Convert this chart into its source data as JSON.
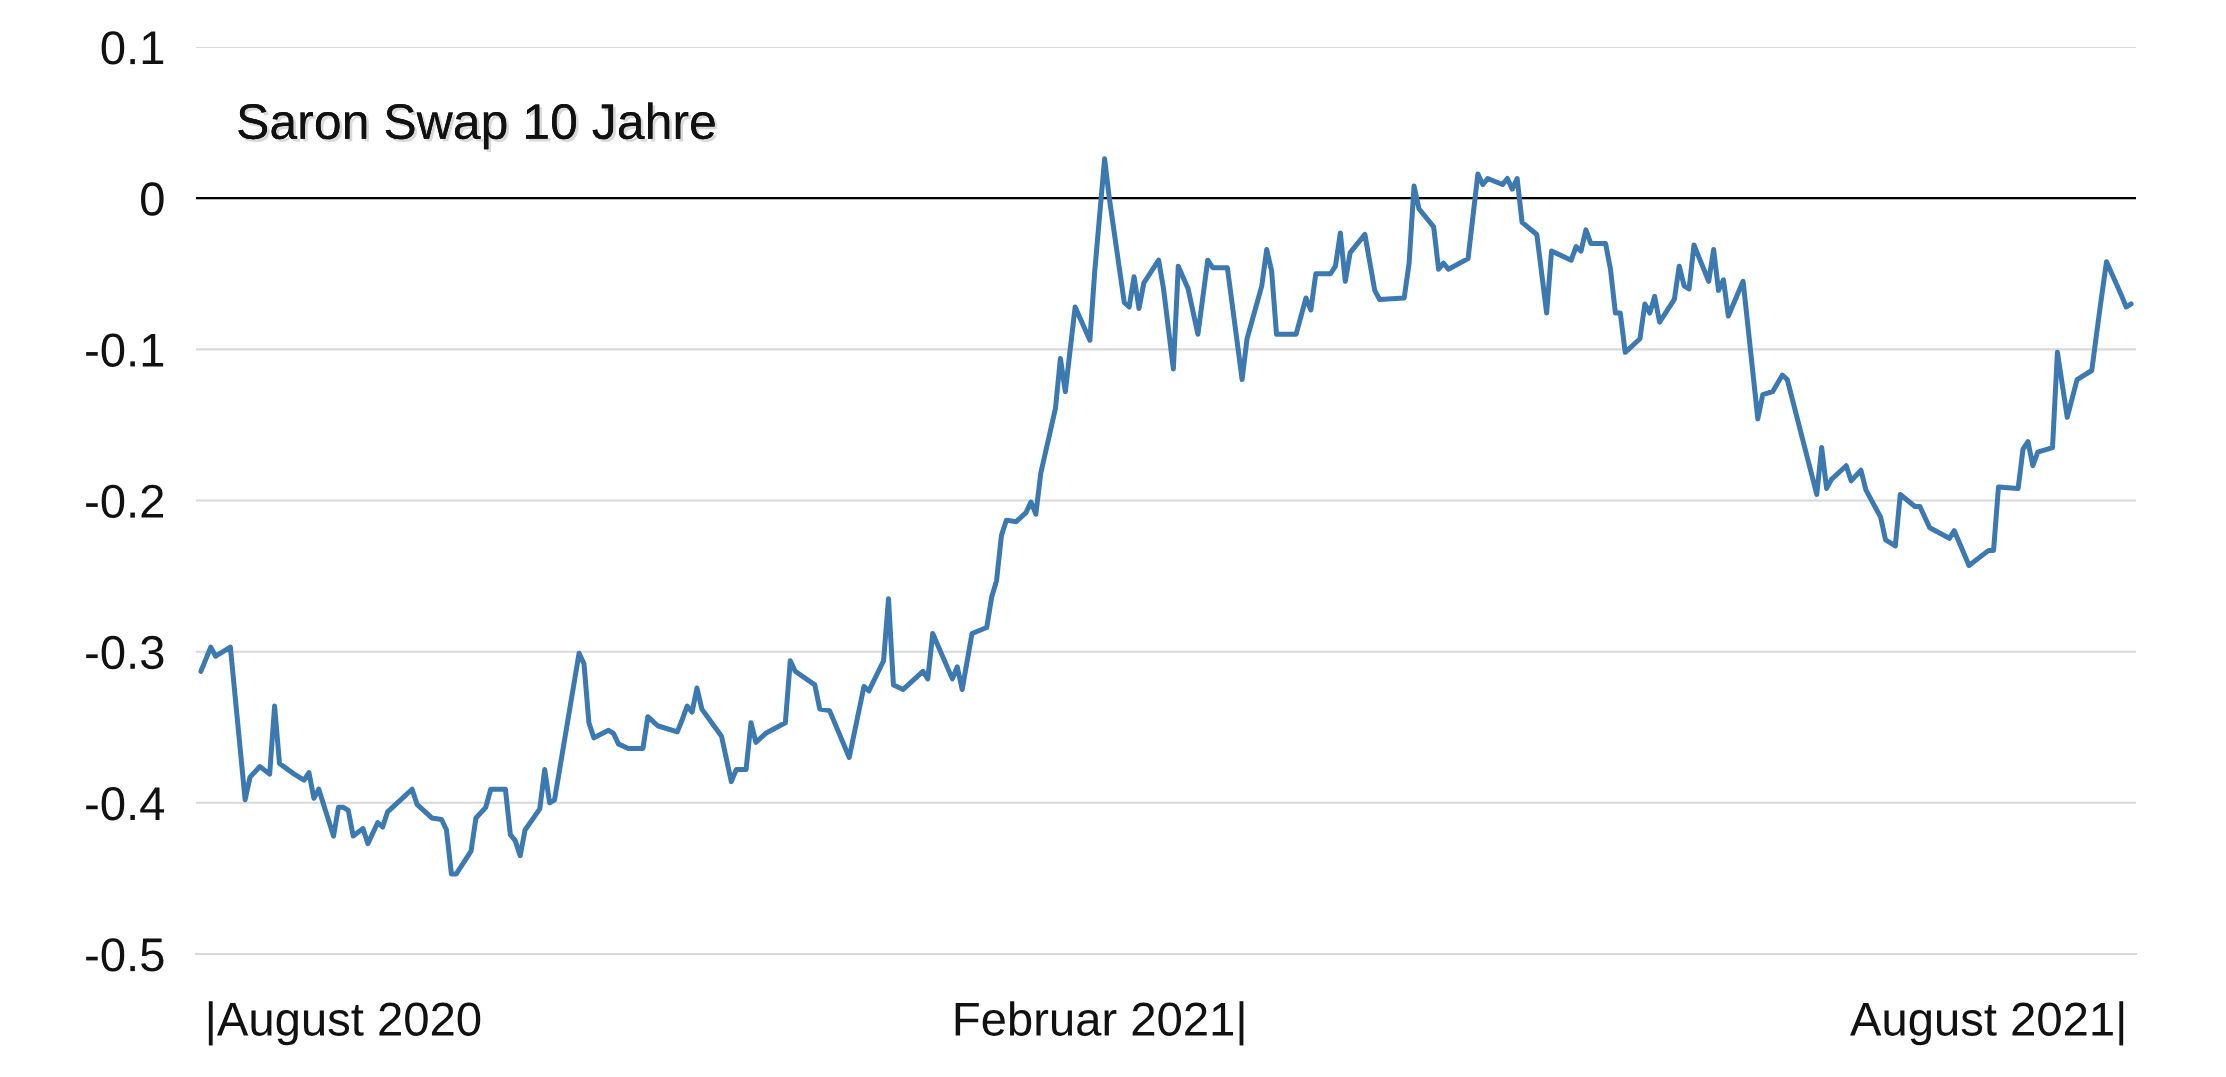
{
  "chart_data": {
    "type": "line",
    "title": "Saron Swap 10 Jahre",
    "x": [
      "2020-08-02",
      "2020-08-04",
      "2020-08-05",
      "2020-08-08",
      "2020-08-11",
      "2020-08-12",
      "2020-08-14",
      "2020-08-16",
      "2020-08-17",
      "2020-08-18",
      "2020-08-21",
      "2020-08-23",
      "2020-08-24",
      "2020-08-25",
      "2020-08-26",
      "2020-08-29",
      "2020-08-30",
      "2020-08-31",
      "2020-09-01",
      "2020-09-02",
      "2020-09-04",
      "2020-09-05",
      "2020-09-07",
      "2020-09-08",
      "2020-09-09",
      "2020-09-12",
      "2020-09-14",
      "2020-09-15",
      "2020-09-18",
      "2020-09-20",
      "2020-09-21",
      "2020-09-22",
      "2020-09-23",
      "2020-09-26",
      "2020-09-27",
      "2020-09-29",
      "2020-09-30",
      "2020-10-03",
      "2020-10-04",
      "2020-10-05",
      "2020-10-06",
      "2020-10-07",
      "2020-10-10",
      "2020-10-11",
      "2020-10-12",
      "2020-10-13",
      "2020-10-18",
      "2020-10-19",
      "2020-10-20",
      "2020-10-21",
      "2020-10-24",
      "2020-10-25",
      "2020-10-26",
      "2020-10-28",
      "2020-10-31",
      "2020-11-01",
      "2020-11-03",
      "2020-11-07",
      "2020-11-08",
      "2020-11-09",
      "2020-11-10",
      "2020-11-11",
      "2020-11-12",
      "2020-11-16",
      "2020-11-18",
      "2020-11-19",
      "2020-11-21",
      "2020-11-22",
      "2020-11-23",
      "2020-11-25",
      "2020-11-29",
      "2020-11-30",
      "2020-12-01",
      "2020-12-05",
      "2020-12-06",
      "2020-12-08",
      "2020-12-12",
      "2020-12-15",
      "2020-12-16",
      "2020-12-19",
      "2020-12-20",
      "2020-12-21",
      "2020-12-23",
      "2020-12-27",
      "2020-12-28",
      "2020-12-29",
      "2021-01-02",
      "2021-01-03",
      "2021-01-04",
      "2021-01-06",
      "2021-01-09",
      "2021-01-10",
      "2021-01-11",
      "2021-01-12",
      "2021-01-13",
      "2021-01-15",
      "2021-01-17",
      "2021-01-18",
      "2021-01-19",
      "2021-01-20",
      "2021-01-23",
      "2021-01-24",
      "2021-01-25",
      "2021-01-27",
      "2021-01-30",
      "2021-01-31",
      "2021-02-02",
      "2021-02-03",
      "2021-02-06",
      "2021-02-07",
      "2021-02-08",
      "2021-02-09",
      "2021-02-10",
      "2021-02-13",
      "2021-02-14",
      "2021-02-16",
      "2021-02-17",
      "2021-02-19",
      "2021-02-21",
      "2021-02-23",
      "2021-02-24",
      "2021-02-27",
      "2021-03-02",
      "2021-03-03",
      "2021-03-06",
      "2021-03-07",
      "2021-03-08",
      "2021-03-09",
      "2021-03-13",
      "2021-03-15",
      "2021-03-16",
      "2021-03-17",
      "2021-03-20",
      "2021-03-21",
      "2021-03-22",
      "2021-03-23",
      "2021-03-24",
      "2021-03-27",
      "2021-03-29",
      "2021-03-30",
      "2021-04-04",
      "2021-04-05",
      "2021-04-06",
      "2021-04-07",
      "2021-04-10",
      "2021-04-11",
      "2021-04-12",
      "2021-04-13",
      "2021-04-17",
      "2021-04-19",
      "2021-04-20",
      "2021-04-21",
      "2021-04-24",
      "2021-04-25",
      "2021-04-26",
      "2021-04-27",
      "2021-04-28",
      "2021-05-01",
      "2021-05-03",
      "2021-05-04",
      "2021-05-08",
      "2021-05-09",
      "2021-05-10",
      "2021-05-11",
      "2021-05-12",
      "2021-05-15",
      "2021-05-16",
      "2021-05-17",
      "2021-05-18",
      "2021-05-19",
      "2021-05-22",
      "2021-05-23",
      "2021-05-24",
      "2021-05-25",
      "2021-05-26",
      "2021-05-29",
      "2021-05-30",
      "2021-05-31",
      "2021-06-01",
      "2021-06-02",
      "2021-06-05",
      "2021-06-06",
      "2021-06-07",
      "2021-06-08",
      "2021-06-09",
      "2021-06-12",
      "2021-06-13",
      "2021-06-15",
      "2021-06-16",
      "2021-06-18",
      "2021-06-20",
      "2021-06-21",
      "2021-06-27",
      "2021-06-28",
      "2021-06-29",
      "2021-06-30",
      "2021-07-03",
      "2021-07-04",
      "2021-07-06",
      "2021-07-07",
      "2021-07-10",
      "2021-07-11",
      "2021-07-13",
      "2021-07-14",
      "2021-07-17",
      "2021-07-18",
      "2021-07-20",
      "2021-07-24",
      "2021-07-25",
      "2021-07-28",
      "2021-08-01",
      "2021-08-02",
      "2021-08-03",
      "2021-08-07",
      "2021-08-08",
      "2021-08-09",
      "2021-08-10",
      "2021-08-11",
      "2021-08-14",
      "2021-08-15",
      "2021-08-17",
      "2021-08-19",
      "2021-08-22",
      "2021-08-23",
      "2021-08-24",
      "2021-08-25",
      "2021-08-28",
      "2021-08-29",
      "2021-08-30"
    ],
    "series": [
      {
        "color": "#3c79b1",
        "values": [
          -0.313,
          -0.297,
          -0.303,
          -0.297,
          -0.398,
          -0.383,
          -0.376,
          -0.381,
          -0.336,
          -0.374,
          -0.381,
          -0.385,
          -0.38,
          -0.397,
          -0.391,
          -0.422,
          -0.403,
          -0.403,
          -0.405,
          -0.422,
          -0.417,
          -0.427,
          -0.413,
          -0.416,
          -0.406,
          -0.397,
          -0.391,
          -0.401,
          -0.41,
          -0.411,
          -0.418,
          -0.447,
          -0.447,
          -0.432,
          -0.41,
          -0.403,
          -0.391,
          -0.391,
          -0.421,
          -0.425,
          -0.435,
          -0.418,
          -0.404,
          -0.378,
          -0.4,
          -0.398,
          -0.301,
          -0.308,
          -0.347,
          -0.357,
          -0.352,
          -0.354,
          -0.361,
          -0.364,
          -0.364,
          -0.343,
          -0.349,
          -0.353,
          -0.345,
          -0.336,
          -0.34,
          -0.324,
          -0.338,
          -0.356,
          -0.386,
          -0.378,
          -0.378,
          -0.347,
          -0.36,
          -0.354,
          -0.347,
          -0.306,
          -0.313,
          -0.322,
          -0.338,
          -0.339,
          -0.37,
          -0.323,
          -0.326,
          -0.306,
          -0.265,
          -0.322,
          -0.325,
          -0.313,
          -0.318,
          -0.288,
          -0.318,
          -0.31,
          -0.325,
          -0.288,
          -0.284,
          -0.264,
          -0.253,
          -0.223,
          -0.213,
          -0.214,
          -0.208,
          -0.201,
          -0.209,
          -0.182,
          -0.139,
          -0.106,
          -0.128,
          -0.072,
          -0.094,
          -0.048,
          0.026,
          -0.001,
          -0.069,
          -0.072,
          -0.052,
          -0.073,
          -0.056,
          -0.041,
          -0.06,
          -0.113,
          -0.045,
          -0.06,
          -0.09,
          -0.041,
          -0.046,
          -0.046,
          -0.12,
          -0.093,
          -0.058,
          -0.034,
          -0.048,
          -0.09,
          -0.09,
          -0.066,
          -0.074,
          -0.05,
          -0.05,
          -0.045,
          -0.023,
          -0.055,
          -0.036,
          -0.024,
          -0.061,
          -0.067,
          -0.066,
          -0.043,
          0.008,
          -0.007,
          -0.019,
          -0.047,
          -0.043,
          -0.047,
          -0.04,
          0.016,
          0.009,
          0.013,
          0.009,
          0.013,
          0.006,
          0.013,
          -0.016,
          -0.024,
          -0.076,
          -0.035,
          -0.041,
          -0.032,
          -0.035,
          -0.021,
          -0.03,
          -0.03,
          -0.047,
          -0.076,
          -0.076,
          -0.102,
          -0.093,
          -0.07,
          -0.076,
          -0.065,
          -0.082,
          -0.067,
          -0.045,
          -0.058,
          -0.06,
          -0.031,
          -0.055,
          -0.034,
          -0.061,
          -0.054,
          -0.078,
          -0.055,
          -0.085,
          -0.146,
          -0.13,
          -0.128,
          -0.117,
          -0.12,
          -0.196,
          -0.165,
          -0.192,
          -0.186,
          -0.177,
          -0.187,
          -0.18,
          -0.193,
          -0.211,
          -0.226,
          -0.23,
          -0.196,
          -0.204,
          -0.204,
          -0.218,
          -0.225,
          -0.22,
          -0.243,
          -0.233,
          -0.233,
          -0.191,
          -0.192,
          -0.166,
          -0.161,
          -0.177,
          -0.168,
          -0.165,
          -0.102,
          -0.145,
          -0.12,
          -0.114,
          -0.089,
          -0.065,
          -0.042,
          -0.064,
          -0.072,
          -0.07
        ]
      }
    ],
    "xlim": [
      "2020-08-01",
      "2021-08-31"
    ],
    "xticks": [
      {
        "value": "2020-08-31",
        "label": "|August 2020"
      },
      {
        "value": "2021-02-01",
        "label": "Februar 2021|"
      },
      {
        "value": "2021-08-01",
        "label": "August 2021|"
      }
    ],
    "ylim": [
      -0.5,
      0.1
    ],
    "yticks": [
      -0.5,
      -0.4,
      -0.3,
      -0.2,
      -0.1,
      0,
      0.1
    ],
    "grid": "y",
    "ref_lines": [
      {
        "axis": "y",
        "value": 0,
        "color": "#000000"
      }
    ]
  }
}
